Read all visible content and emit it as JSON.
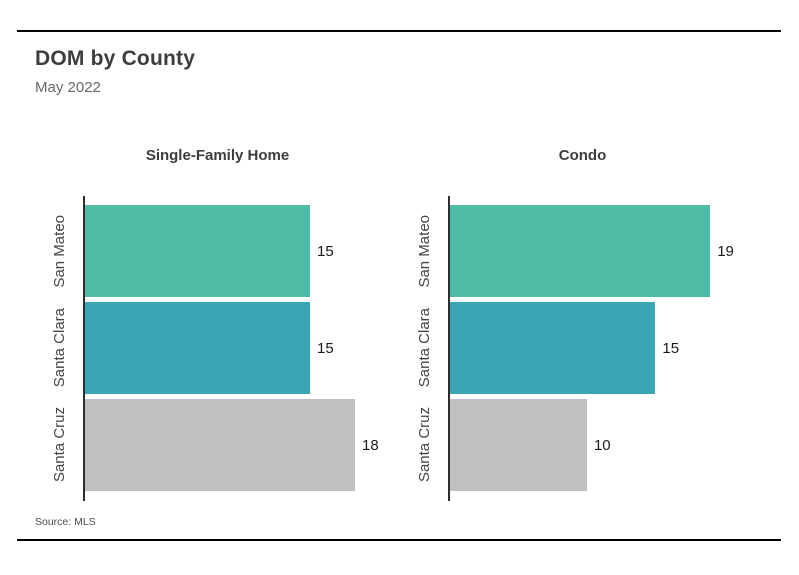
{
  "header": {
    "title": "DOM by County",
    "subtitle": "May 2022"
  },
  "source": "Source:  MLS",
  "colors": {
    "bar_colors": [
      "#4FBCA8",
      "#3BA6B3",
      "#C0C0C0"
    ],
    "axis": "#2E2E2E",
    "rule": "#000000",
    "title_text": "#3D3D3D",
    "subtitle_text": "#696969",
    "value_label_text": "#1A1A1A",
    "category_label_text": "#454545"
  },
  "chart_data": [
    {
      "type": "bar",
      "orientation": "horizontal",
      "title": "Single-Family Home",
      "categories": [
        "San Mateo",
        "Santa Clara",
        "Santa Cruz"
      ],
      "values": [
        15,
        15,
        18
      ],
      "xlim": [
        0,
        21
      ],
      "grid": false,
      "legend": false,
      "value_labels_shown": true
    },
    {
      "type": "bar",
      "orientation": "horizontal",
      "title": "Condo",
      "categories": [
        "San Mateo",
        "Santa Clara",
        "Santa Cruz"
      ],
      "values": [
        19,
        15,
        10
      ],
      "xlim": [
        0,
        23
      ],
      "grid": false,
      "legend": false,
      "value_labels_shown": true
    }
  ]
}
